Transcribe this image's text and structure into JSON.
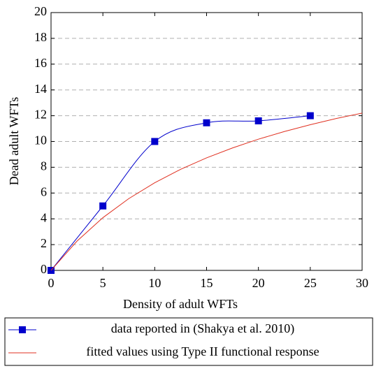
{
  "chart_data": {
    "type": "line",
    "xlabel": "Density of adult WFTs",
    "ylabel": "Dead adult WFTs",
    "xlim": [
      0,
      30
    ],
    "xticks": [
      0,
      5,
      10,
      15,
      20,
      25,
      30
    ],
    "ylim": [
      0,
      20
    ],
    "yticks": [
      0,
      2,
      4,
      6,
      8,
      10,
      12,
      14,
      16,
      18,
      20
    ],
    "grid": true,
    "legend": "bottom",
    "series": [
      {
        "name": "data reported in (Shakya et al.  2010)",
        "color": "#0000cc",
        "marker": "square",
        "smooth": true,
        "x": [
          0,
          5,
          10,
          15,
          20,
          25
        ],
        "values": [
          0,
          5,
          10,
          11.45,
          11.6,
          12
        ]
      },
      {
        "name": "fitted values using Type II functional response",
        "color": "#e03020",
        "x": [
          0,
          2.5,
          5,
          7.5,
          10,
          12.5,
          15,
          17.5,
          20,
          22.5,
          25,
          27.5,
          30
        ],
        "values": [
          0,
          2.27,
          4.09,
          5.57,
          6.8,
          7.84,
          8.73,
          9.5,
          10.18,
          10.77,
          11.3,
          11.78,
          12.2
        ]
      }
    ]
  }
}
